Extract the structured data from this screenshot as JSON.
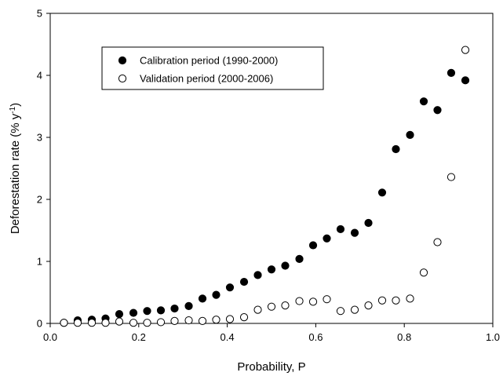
{
  "chart_data": {
    "type": "scatter",
    "title": "",
    "xlabel": "Probability, P",
    "ylabel": "Deforestation rate (% y",
    "ylabel_superscript": "-1",
    "ylabel_close": ")",
    "xlim": [
      0.0,
      1.0
    ],
    "ylim": [
      0,
      5
    ],
    "xticks": [
      "0.0",
      "0.2",
      "0.4",
      "0.6",
      "0.8",
      "1.0"
    ],
    "yticks": [
      "0",
      "1",
      "2",
      "3",
      "4",
      "5"
    ],
    "grid": false,
    "legend_position": "top-left",
    "series": [
      {
        "name": "Calibration period (1990-2000)",
        "marker": "filled-circle",
        "color": "#000000",
        "x": [
          0.031,
          0.062,
          0.094,
          0.125,
          0.156,
          0.188,
          0.219,
          0.25,
          0.281,
          0.313,
          0.344,
          0.375,
          0.406,
          0.438,
          0.469,
          0.5,
          0.531,
          0.563,
          0.594,
          0.625,
          0.656,
          0.688,
          0.719,
          0.75,
          0.781,
          0.813,
          0.844,
          0.875,
          0.906,
          0.938
        ],
        "y": [
          0.01,
          0.05,
          0.06,
          0.08,
          0.15,
          0.17,
          0.2,
          0.21,
          0.24,
          0.28,
          0.4,
          0.46,
          0.58,
          0.67,
          0.78,
          0.87,
          0.93,
          1.04,
          1.26,
          1.37,
          1.52,
          1.46,
          1.62,
          2.11,
          2.81,
          3.04,
          3.58,
          3.44,
          4.04,
          3.92
        ]
      },
      {
        "name": "Validation period (2000-2006)",
        "marker": "open-circle",
        "color": "#000000",
        "x": [
          0.031,
          0.062,
          0.094,
          0.125,
          0.156,
          0.188,
          0.219,
          0.25,
          0.281,
          0.313,
          0.344,
          0.375,
          0.406,
          0.438,
          0.469,
          0.5,
          0.531,
          0.563,
          0.594,
          0.625,
          0.656,
          0.688,
          0.719,
          0.75,
          0.781,
          0.813,
          0.844,
          0.875,
          0.906,
          0.938
        ],
        "y": [
          0.01,
          0.01,
          0.01,
          0.01,
          0.03,
          0.01,
          0.01,
          0.02,
          0.04,
          0.05,
          0.04,
          0.06,
          0.07,
          0.1,
          0.22,
          0.27,
          0.29,
          0.36,
          0.35,
          0.39,
          0.2,
          0.22,
          0.29,
          0.37,
          0.37,
          0.4,
          0.82,
          1.31,
          2.36,
          4.41
        ]
      }
    ]
  }
}
